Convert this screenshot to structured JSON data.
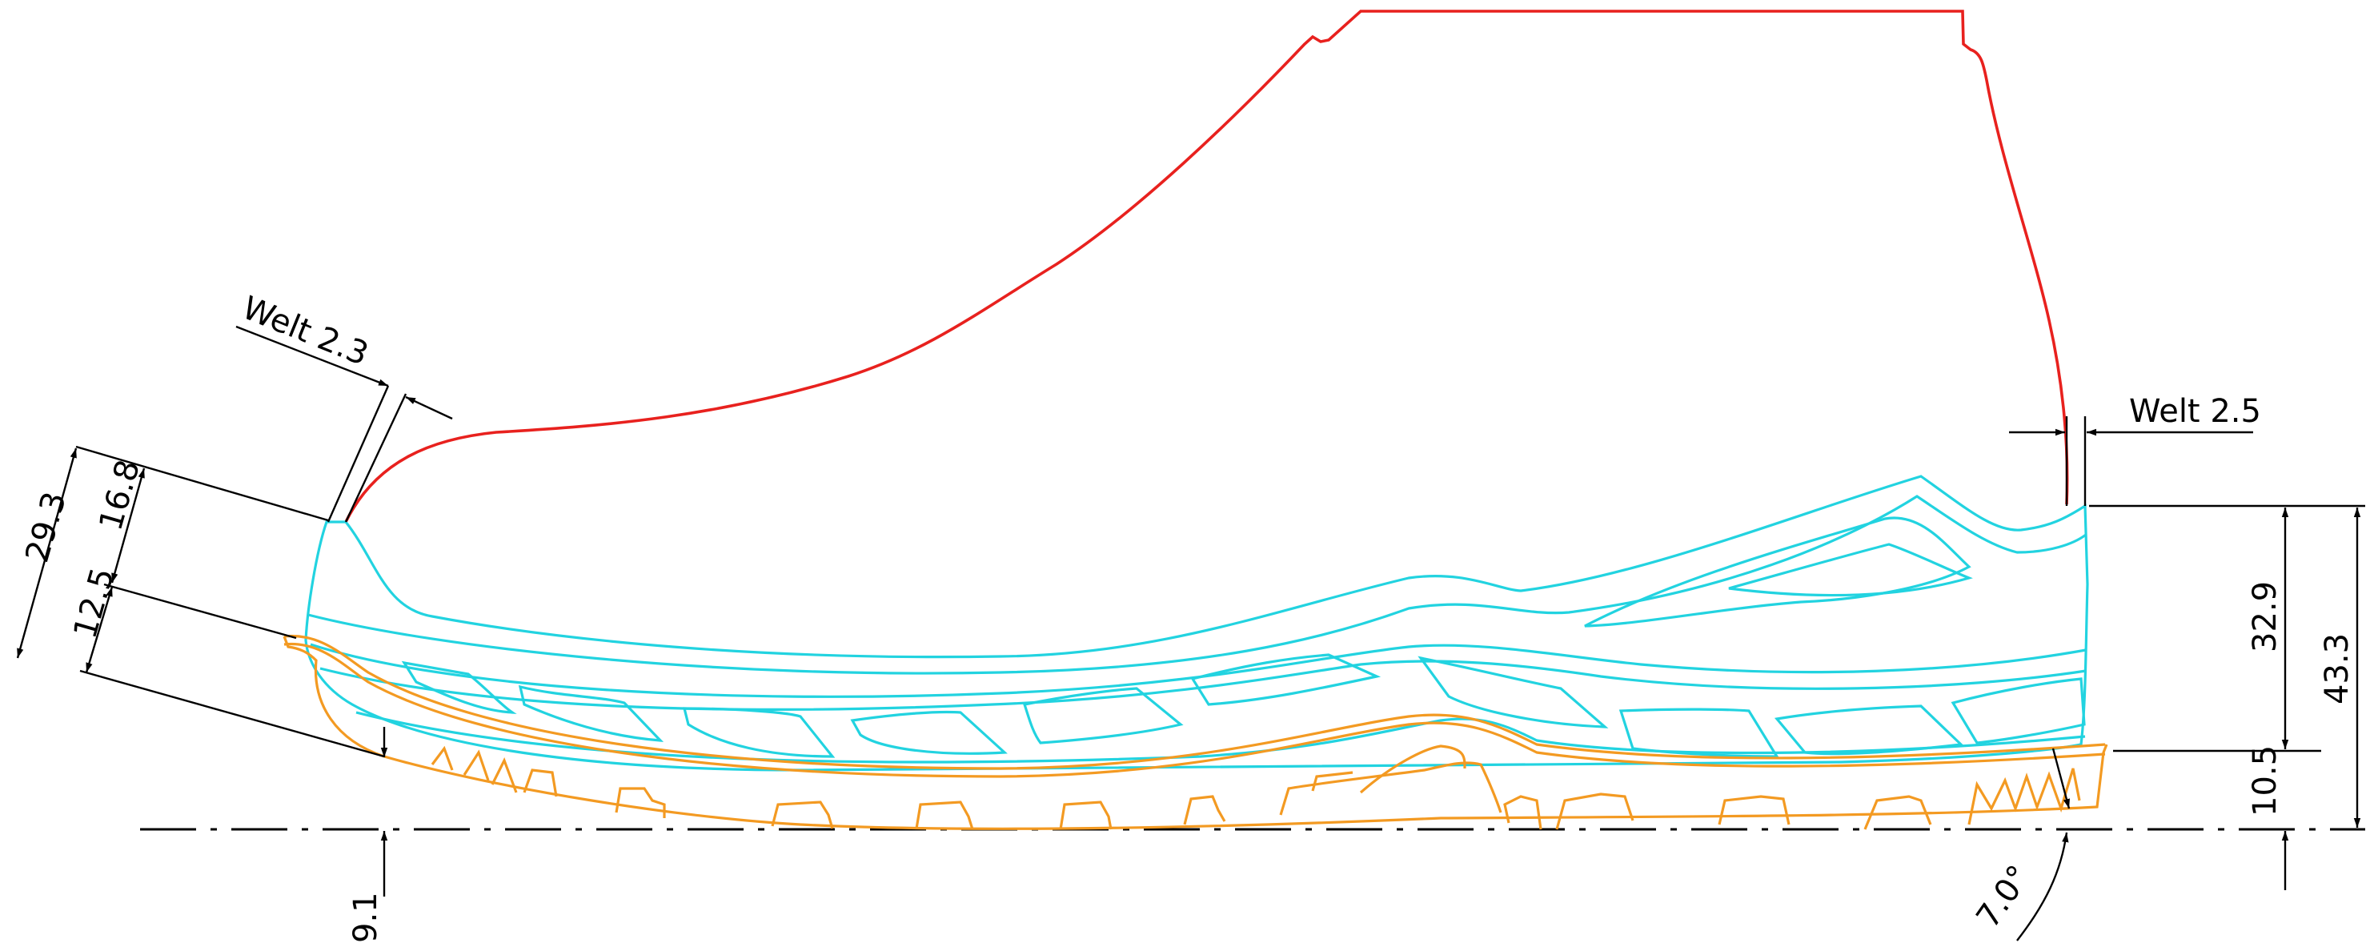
{
  "colors": {
    "upper": "#e8211e",
    "midsole": "#22d3e0",
    "outsole": "#f39a22",
    "dimension": "#000000"
  },
  "dimensions": {
    "welt_heel": "Welt 2.3",
    "welt_toe": "Welt 2.5",
    "heel_total": "29.3",
    "heel_upper": "16.8",
    "heel_lower": "12.5",
    "toe_total": "43.3",
    "toe_midsole": "32.9",
    "toe_outsole": "10.5",
    "ground_offset": "9.1",
    "toe_angle": "7.0°"
  }
}
